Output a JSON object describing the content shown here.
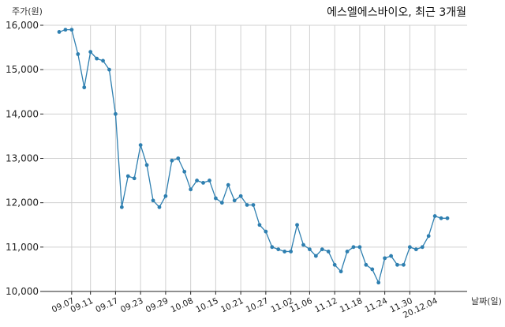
{
  "chart_data": {
    "type": "line",
    "title": "에스엘에스바이오, 최근 3개월",
    "ylabel": "주가(원)",
    "xlabel": "날짜(일)",
    "ylim": [
      10000,
      16000
    ],
    "yticks": [
      10000,
      11000,
      12000,
      13000,
      14000,
      15000,
      16000
    ],
    "ytick_labels": [
      "10,000",
      "11,000",
      "12,000",
      "13,000",
      "14,000",
      "15,000",
      "16,000"
    ],
    "grid": true,
    "line_color": "#2e7fb0",
    "x_tick_labels": [
      "09.07",
      "09.11",
      "09.17",
      "09.23",
      "09.29",
      "10.08",
      "10.15",
      "10.21",
      "10.27",
      "11.02",
      "11.06",
      "11.12",
      "11.18",
      "11.24",
      "11.30",
      "20.12.04"
    ],
    "x_tick_positions": [
      2,
      5,
      9,
      13,
      17,
      21,
      25,
      29,
      33,
      37,
      40,
      44,
      48,
      52,
      56,
      60
    ],
    "series": [
      {
        "values": [
          15850,
          15900,
          15900,
          15350,
          14600,
          15400,
          15250,
          15200,
          15000,
          14000,
          11900,
          12600,
          12550,
          13300,
          12850,
          12050,
          11900,
          12150,
          12950,
          13000,
          12700,
          12300,
          12500,
          12450,
          12500,
          12100,
          12000,
          12400,
          12050,
          12150,
          11950,
          11950,
          11500,
          11350,
          11000,
          10950,
          10900,
          10900,
          11500,
          11050,
          10950,
          10800,
          10950,
          10900,
          10600,
          10450,
          10900,
          11000,
          11000,
          10600,
          10500,
          10200,
          10750,
          10800,
          10600,
          10600,
          11000,
          10950,
          11000,
          11250,
          11700,
          11650,
          11650
        ]
      }
    ]
  }
}
